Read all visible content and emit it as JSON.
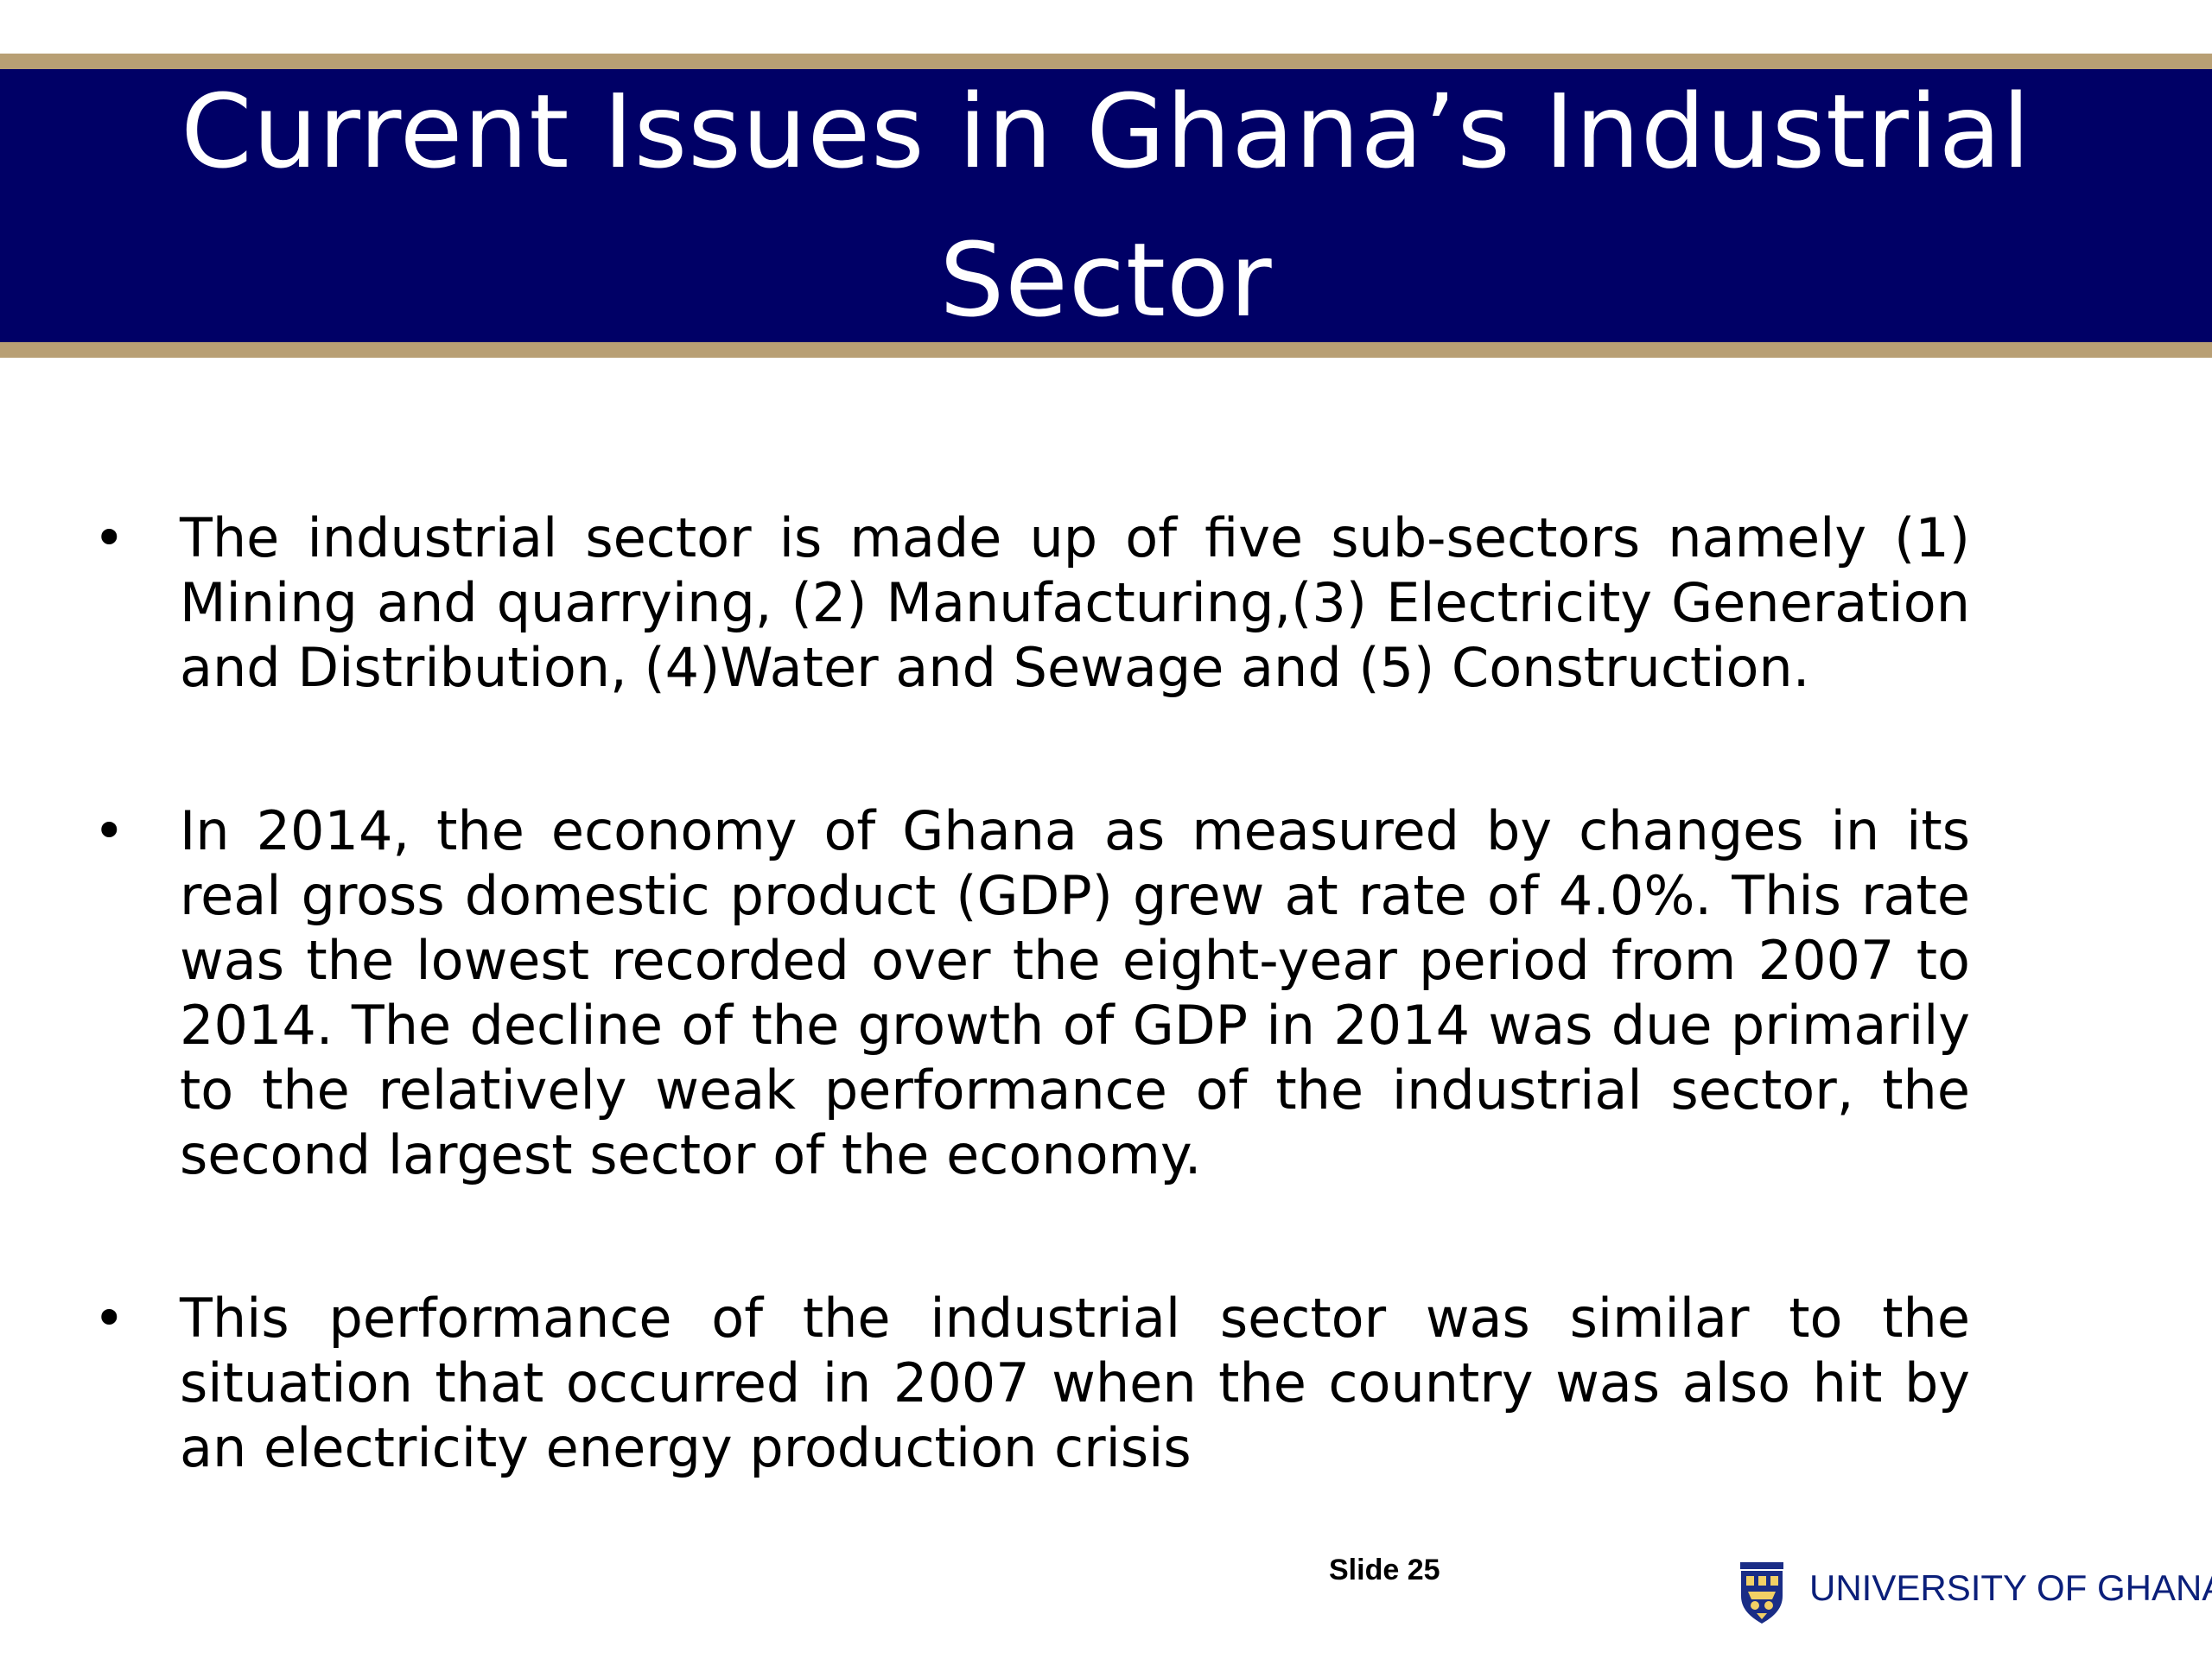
{
  "slide": {
    "title": "Current Issues in Ghana’s Industrial Sector",
    "bullets": [
      "The industrial sector is made up of five sub-sectors namely (1) Mining and quarrying, (2) Manufacturing,(3) Electricity Generation and Distribution, (4)Water and Sewage and (5) Construction.",
      "In 2014, the economy of Ghana as measured by changes in its real gross domestic product (GDP) grew at rate of 4.0%. This rate was the lowest recorded over the eight-year period from 2007 to 2014. The decline of the growth of GDP in 2014 was due primarily to the relatively weak performance of the industrial sector, the second largest sector of the economy.",
      "This performance of the industrial sector was similar to the situation that occurred in 2007 when the country was also hit by an electricity energy production crisis"
    ],
    "bullet_symbol": "•",
    "slide_number": "Slide 25"
  },
  "footer": {
    "university_name": "UNIVERSITY OF GHANA",
    "logo_icon": "university-crest-icon"
  },
  "colors": {
    "title_band": "#000066",
    "band_border": "#b89f74",
    "title_text": "#ffffff",
    "body_text": "#000000",
    "university_text": "#0b1f7a"
  }
}
